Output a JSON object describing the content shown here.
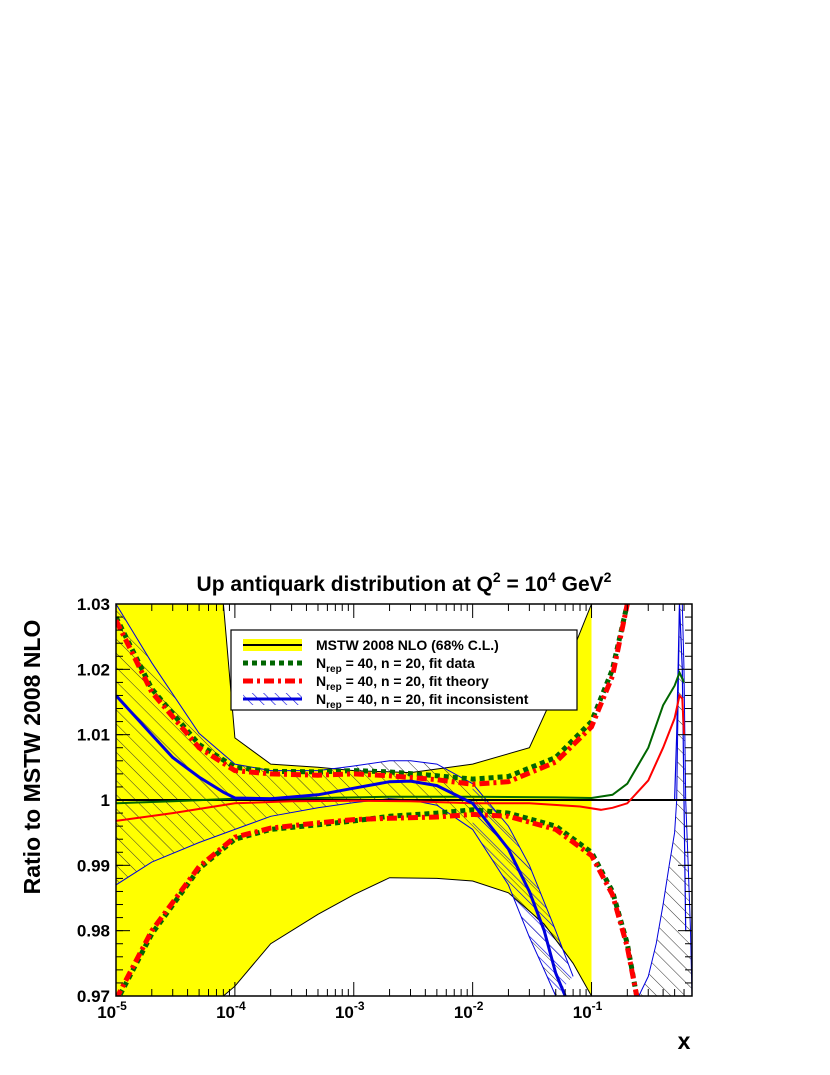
{
  "chart_data": {
    "type": "line",
    "title": {
      "main": "Up antiquark distribution at Q",
      "sup1": "2",
      "mid": " = 10",
      "sup2": "4",
      "unit": " GeV",
      "sup3": "2"
    },
    "xlabel": "x",
    "ylabel": "Ratio to MSTW 2008 NLO",
    "xscale": "log",
    "xlim": [
      1e-05,
      0.7
    ],
    "ylim": [
      0.97,
      1.03
    ],
    "grid": false,
    "legend_position": "top-center",
    "x_ticks": [
      {
        "value": 1e-05,
        "base": "10",
        "exp": "-5"
      },
      {
        "value": 0.0001,
        "base": "10",
        "exp": "-4"
      },
      {
        "value": 0.001,
        "base": "10",
        "exp": "-3"
      },
      {
        "value": 0.01,
        "base": "10",
        "exp": "-2"
      },
      {
        "value": 0.1,
        "base": "10",
        "exp": "-1"
      }
    ],
    "y_ticks": [
      {
        "value": 0.97,
        "label": "0.97"
      },
      {
        "value": 0.98,
        "label": "0.98"
      },
      {
        "value": 0.99,
        "label": "0.99"
      },
      {
        "value": 1.0,
        "label": "1"
      },
      {
        "value": 1.01,
        "label": "1.01"
      },
      {
        "value": 1.02,
        "label": "1.02"
      },
      {
        "value": 1.03,
        "label": "1.03"
      }
    ],
    "colors": {
      "mstw_band": "#ffff00",
      "mstw_line": "#000000",
      "fit_data": "#006600",
      "fit_theory": "#ff0000",
      "fit_inconsistent": "#0000dd",
      "hatch_black": "#333333",
      "hatch_blue": "#0000dd"
    },
    "legend": [
      {
        "key": "mstw",
        "style": "solid-yellow-band",
        "text": "MSTW 2008 NLO (68% C.L.)"
      },
      {
        "key": "fit_data",
        "style": "dotted-green",
        "pre": "N",
        "sub": "rep",
        "post": " = 40, n = 20, fit data"
      },
      {
        "key": "fit_theory",
        "style": "dashdot-red",
        "pre": "N",
        "sub": "rep",
        "post": " = 40, n = 20, fit theory"
      },
      {
        "key": "fit_inconsistent",
        "style": "solid-blue-hatched",
        "pre": "N",
        "sub": "rep",
        "post": " = 40, n = 20, fit inconsistent"
      }
    ],
    "series": [
      {
        "name": "MSTW 2008 NLO (68% C.L.) upper",
        "x": [
          1e-05,
          2e-05,
          3e-05,
          5e-05,
          8e-05,
          0.0001,
          0.0002,
          0.0005,
          0.001,
          0.003,
          0.01,
          0.03,
          0.06,
          0.1
        ],
        "y": [
          1.03,
          1.03,
          1.03,
          1.03,
          1.03,
          1.0095,
          1.0055,
          1.005,
          1.0045,
          1.0042,
          1.0055,
          1.008,
          1.02,
          1.03
        ]
      },
      {
        "name": "MSTW 2008 NLO (68% C.L.) lower",
        "x": [
          1e-05,
          5e-05,
          8e-05,
          0.0001,
          0.0002,
          0.0005,
          0.001,
          0.002,
          0.005,
          0.01,
          0.02,
          0.04,
          0.07,
          0.1
        ],
        "y": [
          0.97,
          0.97,
          0.97,
          0.9715,
          0.978,
          0.9825,
          0.9855,
          0.9881,
          0.988,
          0.9876,
          0.9858,
          0.981,
          0.975,
          0.97
        ]
      },
      {
        "name": "fit data upper",
        "x": [
          1e-05,
          2e-05,
          5e-05,
          0.0001,
          0.0002,
          0.0005,
          0.001,
          0.002,
          0.005,
          0.01,
          0.02,
          0.05,
          0.1,
          0.15,
          0.2
        ],
        "y": [
          1.028,
          1.017,
          1.0085,
          1.005,
          1.0044,
          1.0043,
          1.0045,
          1.0043,
          1.0037,
          1.0032,
          1.0036,
          1.0065,
          1.012,
          1.02,
          1.03
        ]
      },
      {
        "name": "fit data lower",
        "x": [
          1e-05,
          2e-05,
          5e-05,
          0.0001,
          0.0002,
          0.0005,
          0.001,
          0.002,
          0.005,
          0.01,
          0.02,
          0.05,
          0.1,
          0.15,
          0.2,
          0.24
        ],
        "y": [
          0.969,
          0.9795,
          0.9895,
          0.994,
          0.9955,
          0.9962,
          0.9968,
          0.9975,
          0.998,
          0.9985,
          0.998,
          0.996,
          0.992,
          0.986,
          0.978,
          0.97
        ]
      },
      {
        "name": "fit data central",
        "x": [
          1e-05,
          3e-05,
          0.0001,
          0.0005,
          0.002,
          0.01,
          0.05,
          0.1,
          0.15,
          0.2,
          0.3,
          0.4,
          0.5,
          0.55,
          0.6
        ],
        "y": [
          0.9995,
          0.9998,
          1.0002,
          1.0003,
          1.0005,
          1.0005,
          1.0004,
          1.0003,
          1.0008,
          1.0025,
          1.008,
          1.0145,
          1.0175,
          1.0195,
          1.018
        ]
      },
      {
        "name": "fit theory upper",
        "x": [
          1e-05,
          2e-05,
          5e-05,
          0.0001,
          0.0002,
          0.0005,
          0.001,
          0.002,
          0.005,
          0.01,
          0.02,
          0.05,
          0.1,
          0.15,
          0.2
        ],
        "y": [
          1.0275,
          1.0165,
          1.008,
          1.0045,
          1.004,
          1.0038,
          1.004,
          1.0037,
          1.0031,
          1.0024,
          1.0028,
          1.0058,
          1.0112,
          1.019,
          1.03
        ]
      },
      {
        "name": "fit theory lower",
        "x": [
          1e-05,
          2e-05,
          5e-05,
          0.0001,
          0.0002,
          0.0005,
          0.001,
          0.002,
          0.005,
          0.01,
          0.02,
          0.05,
          0.1,
          0.15,
          0.2,
          0.24
        ],
        "y": [
          0.9695,
          0.98,
          0.9898,
          0.9943,
          0.9957,
          0.9965,
          0.997,
          0.9972,
          0.9974,
          0.9978,
          0.9975,
          0.9955,
          0.9915,
          0.9855,
          0.9775,
          0.97
        ]
      },
      {
        "name": "fit theory central",
        "x": [
          1e-05,
          3e-05,
          0.0001,
          0.0003,
          0.001,
          0.003,
          0.01,
          0.03,
          0.08,
          0.12,
          0.15,
          0.2,
          0.3,
          0.4,
          0.5,
          0.55,
          0.58,
          0.6
        ],
        "y": [
          0.9968,
          0.998,
          0.9995,
          0.9998,
          0.9999,
          0.9998,
          0.9995,
          0.9995,
          0.999,
          0.9985,
          0.9988,
          0.9995,
          1.003,
          1.008,
          1.0125,
          1.016,
          1.0155,
          1.01
        ]
      },
      {
        "name": "fit inconsistent upper",
        "x": [
          1e-05,
          2e-05,
          5e-05,
          0.0001,
          0.0002,
          0.0005,
          0.001,
          0.002,
          0.003,
          0.005,
          0.01,
          0.02,
          0.03,
          0.05,
          0.07
        ],
        "y": [
          1.03,
          1.021,
          1.0102,
          1.0055,
          1.0045,
          1.0045,
          1.0052,
          1.006,
          1.006,
          1.0055,
          1.0025,
          0.996,
          0.99,
          0.98,
          0.973
        ]
      },
      {
        "name": "fit inconsistent lower",
        "x": [
          1e-05,
          2e-05,
          5e-05,
          0.0001,
          0.0002,
          0.0005,
          0.001,
          0.002,
          0.003,
          0.005,
          0.01,
          0.02,
          0.03,
          0.04,
          0.05
        ],
        "y": [
          0.987,
          0.9905,
          0.9935,
          0.9955,
          0.9975,
          0.9988,
          0.9996,
          1.0002,
          1.0,
          0.9992,
          0.9955,
          0.987,
          0.979,
          0.974,
          0.97
        ]
      },
      {
        "name": "fit inconsistent central",
        "x": [
          1e-05,
          2e-05,
          3e-05,
          5e-05,
          8e-05,
          0.0001,
          0.0002,
          0.0005,
          0.001,
          0.002,
          0.003,
          0.005,
          0.01,
          0.02,
          0.03,
          0.04,
          0.05,
          0.06
        ],
        "y": [
          1.016,
          1.01,
          1.0065,
          1.0035,
          1.0012,
          1.0003,
          1.0002,
          1.0008,
          1.0018,
          1.0028,
          1.0029,
          1.0022,
          0.9995,
          0.9925,
          0.986,
          0.98,
          0.9735,
          0.97
        ]
      },
      {
        "name": "high-x hatched band left edge",
        "x": [
          0.25,
          0.3,
          0.35,
          0.4,
          0.45,
          0.5,
          0.52,
          0.55
        ],
        "y": [
          0.97,
          0.973,
          0.978,
          0.984,
          0.99,
          0.995,
          1.0,
          1.03
        ]
      },
      {
        "name": "high-x hatched band right edge",
        "x": [
          0.58,
          0.6,
          0.62,
          0.65,
          0.68,
          0.7
        ],
        "y": [
          1.03,
          1.02,
          1.0,
          0.99,
          0.98,
          0.97
        ]
      },
      {
        "name": "high-x blue band",
        "x": [
          0.5,
          0.52,
          0.55,
          0.58,
          0.6,
          0.62
        ],
        "y": [
          1.0,
          1.01,
          1.03,
          1.02,
          1.0,
          0.98
        ]
      }
    ]
  }
}
